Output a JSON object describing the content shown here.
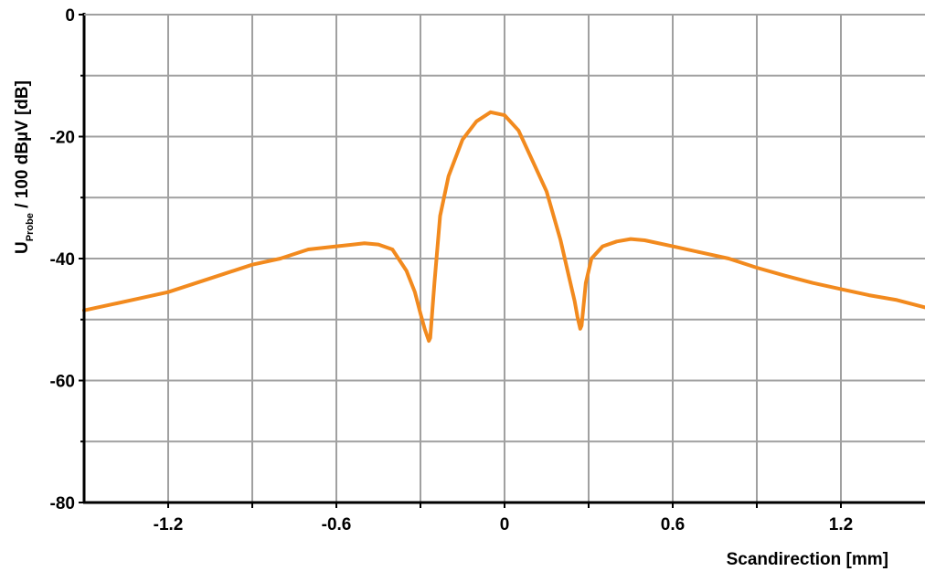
{
  "chart_data": {
    "type": "line",
    "title": "",
    "xlabel": "Scandirection [mm]",
    "ylabel": {
      "main": "U",
      "subscript": "Probe",
      "rest": " / 100 dBµV [dB]"
    },
    "xlim": [
      -1.5,
      1.5
    ],
    "ylim": [
      -80,
      0
    ],
    "x_ticks": [
      -1.2,
      -0.6,
      0,
      0.6,
      1.2
    ],
    "x_tick_labels": [
      "-1.2",
      "-0.6",
      "0",
      "0.6",
      "1.2"
    ],
    "x_grid": [
      -1.2,
      -0.9,
      -0.6,
      -0.3,
      0,
      0.3,
      0.6,
      0.9,
      1.2
    ],
    "y_ticks": [
      0,
      -20,
      -40,
      -60,
      -80
    ],
    "y_tick_labels": [
      "0",
      "-20",
      "-40",
      "-60",
      "-80"
    ],
    "y_grid": [
      -10,
      -20,
      -30,
      -40,
      -50,
      -60,
      -70
    ],
    "grid": true,
    "colors": {
      "series": "#f28a1e",
      "grid": "#a0a0a0",
      "axis": "#000000"
    },
    "series": [
      {
        "x": [
          -1.5,
          -1.4,
          -1.3,
          -1.2,
          -1.1,
          -1.0,
          -0.9,
          -0.8,
          -0.7,
          -0.6,
          -0.5,
          -0.45,
          -0.4,
          -0.35,
          -0.32,
          -0.3,
          -0.285,
          -0.27,
          -0.265,
          -0.25,
          -0.23,
          -0.2,
          -0.15,
          -0.1,
          -0.05,
          0,
          0.05,
          0.1,
          0.15,
          0.2,
          0.23,
          0.25,
          0.26,
          0.27,
          0.275,
          0.29,
          0.31,
          0.35,
          0.4,
          0.45,
          0.5,
          0.6,
          0.7,
          0.8,
          0.9,
          1.0,
          1.1,
          1.2,
          1.3,
          1.4,
          1.5
        ],
        "y": [
          -48.5,
          -47.5,
          -46.5,
          -45.5,
          -44.0,
          -42.5,
          -41.0,
          -40.0,
          -38.5,
          -38.0,
          -37.5,
          -37.7,
          -38.5,
          -42.0,
          -45.5,
          -49.0,
          -51.5,
          -53.5,
          -53.0,
          -44.0,
          -33.0,
          -26.5,
          -20.5,
          -17.5,
          -16.0,
          -16.5,
          -19.0,
          -24.0,
          -29.0,
          -37.0,
          -43.0,
          -47.0,
          -49.5,
          -51.5,
          -51.0,
          -44.0,
          -40.0,
          -38.0,
          -37.2,
          -36.8,
          -37.0,
          -38.0,
          -39.0,
          -40.0,
          -41.5,
          -42.8,
          -44.0,
          -45.0,
          -46.0,
          -46.8,
          -48.0
        ]
      }
    ]
  }
}
